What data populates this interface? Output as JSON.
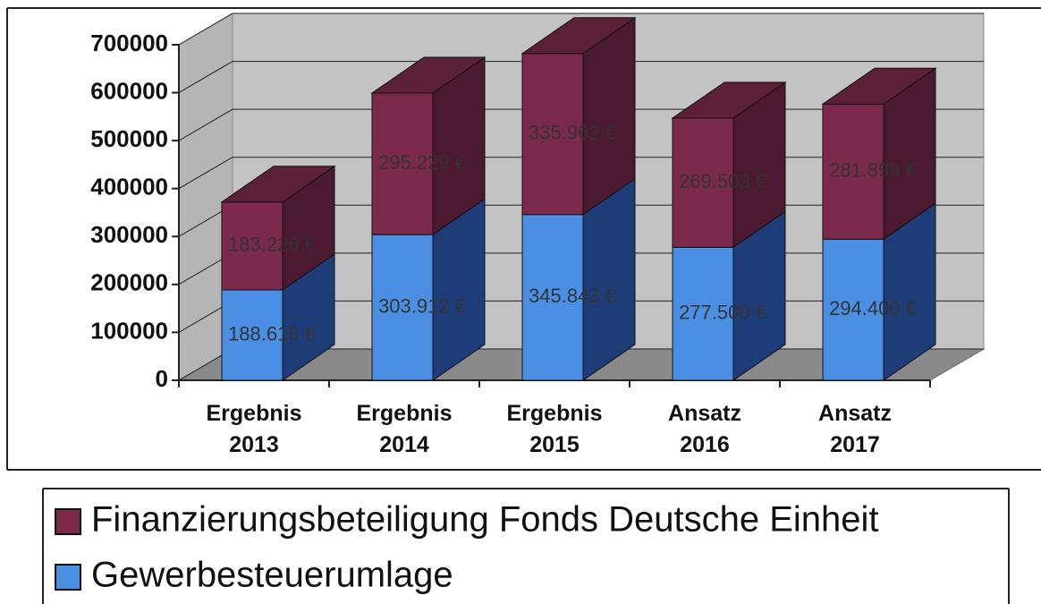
{
  "chart_data": {
    "type": "bar3d_stacked",
    "categories": [
      "Ergebnis 2013",
      "Ergebnis 2014",
      "Ergebnis 2015",
      "Ansatz 2016",
      "Ansatz 2017"
    ],
    "series": [
      {
        "name": "Gewerbesteuerumlage",
        "color": "#4a8fe3",
        "values": [
          188616,
          303912,
          345843,
          277500,
          294400
        ],
        "value_labels": [
          "188.616 €",
          "303.912 €",
          "345.843 €",
          "277.500 €",
          "294.400 €"
        ]
      },
      {
        "name": "Finanzierungsbeteiligung Fonds Deutsche Einheit",
        "color": "#7b2a4c",
        "values": [
          183226,
          295229,
          335962,
          269503,
          281899
        ],
        "value_labels": [
          "183.226 €",
          "295.229 €",
          "335.962 €",
          "269.503 €",
          "281.899 €"
        ]
      }
    ],
    "ylim": [
      0,
      700000
    ],
    "yticks": [
      0,
      100000,
      200000,
      300000,
      400000,
      500000,
      600000,
      700000
    ],
    "grid": true,
    "legend": "bottom"
  }
}
